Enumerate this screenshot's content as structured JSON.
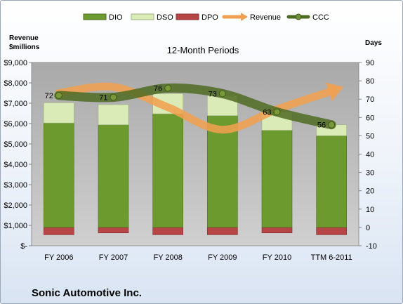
{
  "chart_data": {
    "type": "bar",
    "title": "12-Month Periods",
    "company": "Sonic Automotive Inc.",
    "categories": [
      "FY 2006",
      "FY 2007",
      "FY 2008",
      "FY 2009",
      "FY 2010",
      "TTM 6-2011"
    ],
    "left_axis": {
      "title_line1": "Revenue",
      "title_line2": "$millions",
      "min": 0,
      "max": 9000,
      "step": 1000,
      "ticks": [
        "$-",
        "$1,000",
        "$2,000",
        "$3,000",
        "$4,000",
        "$5,000",
        "$6,000",
        "$7,000",
        "$8,000",
        "$9,000"
      ]
    },
    "right_axis": {
      "title": "Days",
      "min": -10,
      "max": 90,
      "step": 10,
      "ticks": [
        "-10",
        "0",
        "10",
        "20",
        "30",
        "40",
        "50",
        "60",
        "70",
        "80",
        "90"
      ]
    },
    "series": [
      {
        "name": "DIO",
        "kind": "bar",
        "axis": "right",
        "color": "#6d9a2f",
        "values": [
          57,
          56,
          62,
          61,
          53,
          50
        ]
      },
      {
        "name": "DSO",
        "kind": "bar",
        "axis": "right",
        "color": "#dbebb8",
        "values": [
          11,
          11,
          11,
          11,
          10,
          6
        ]
      },
      {
        "name": "DPO",
        "kind": "bar",
        "axis": "right",
        "color": "#b84545",
        "values": [
          -4,
          -3,
          -4,
          -4,
          -3,
          -4
        ]
      },
      {
        "name": "Revenue",
        "kind": "arrow",
        "axis": "left",
        "color": "#f0a050",
        "values": [
          7500,
          7800,
          6800,
          5700,
          6700,
          7600
        ]
      },
      {
        "name": "CCC",
        "kind": "line",
        "axis": "right",
        "color": "#4f6b22",
        "values": [
          72,
          71,
          76,
          73,
          63,
          56
        ]
      }
    ],
    "ccc_labels": [
      "72",
      "71",
      "76",
      "73",
      "63",
      "56"
    ],
    "legend_position": "top",
    "grid": false
  }
}
